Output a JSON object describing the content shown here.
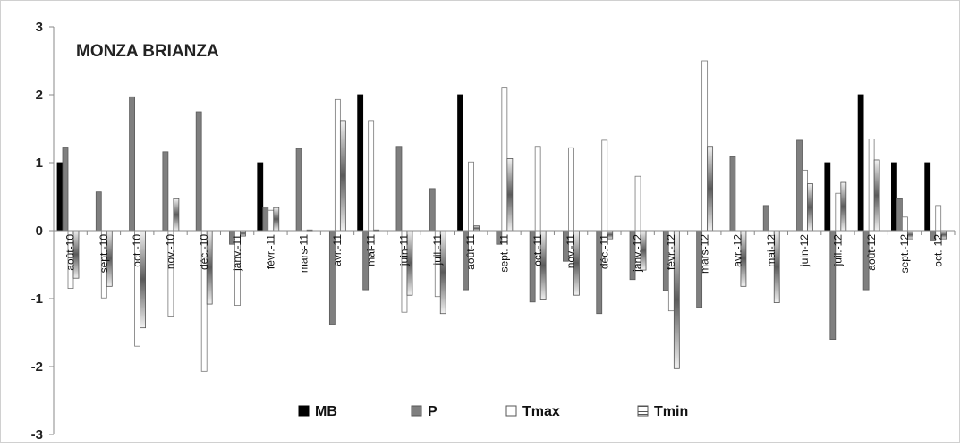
{
  "chart_data": {
    "type": "bar",
    "title": "MONZA BRIANZA",
    "xlabel": "",
    "ylabel": "",
    "ylim": [
      -3,
      3
    ],
    "yticks": [
      "3",
      "2",
      "1",
      "0",
      "-1",
      "-2",
      "-3"
    ],
    "grid": false,
    "legend_position": "bottom-center",
    "categories": [
      "août-10",
      "sept.-10",
      "oct.-10",
      "nov.-10",
      "déc.-10",
      "janv.-11",
      "févr.-11",
      "mars-11",
      "avr.-11",
      "mai-11",
      "juin-11",
      "juil.-11",
      "août-11",
      "sept.-11",
      "oct.-11",
      "nov.-11",
      "déc.-11",
      "janv.-12",
      "févr.-12",
      "mars-12",
      "avr.-12",
      "mai-12",
      "juin-12",
      "juil.-12",
      "août-12",
      "sept.-12",
      "oct.-12"
    ],
    "series": [
      {
        "name": "MB",
        "color": "#000000",
        "values": [
          1,
          0,
          0,
          0,
          0,
          0,
          1,
          0,
          0,
          2,
          0,
          0,
          2,
          0,
          0,
          0,
          0,
          0,
          0,
          0,
          0,
          0,
          0,
          1,
          2,
          1,
          1
        ]
      },
      {
        "name": "P",
        "color": "#7f7f7f",
        "values": [
          1.23,
          0.57,
          1.97,
          1.16,
          1.75,
          -0.2,
          0.35,
          1.21,
          -1.38,
          -0.87,
          1.24,
          0.62,
          -0.87,
          -0.2,
          -1.05,
          -0.45,
          -1.22,
          -0.72,
          -0.88,
          -1.13,
          1.09,
          0.37,
          1.33,
          -1.6,
          -0.87,
          0.47,
          -0.15
        ]
      },
      {
        "name": "Tmax",
        "color": "#ffffff",
        "values": [
          -0.85,
          -0.99,
          -1.7,
          -1.27,
          -2.07,
          -1.1,
          0.3,
          0,
          1.93,
          1.62,
          -1.2,
          -0.97,
          1.01,
          2.11,
          1.24,
          1.22,
          1.33,
          0.8,
          -1.18,
          2.5,
          0,
          -0.07,
          0.89,
          0.55,
          1.35,
          0.2,
          0.37
        ]
      },
      {
        "name": "Tmin",
        "color": "#d9d9d9",
        "values": [
          -0.7,
          -0.82,
          -1.43,
          0.47,
          -1.08,
          -0.08,
          0.34,
          0.01,
          1.62,
          0.01,
          -0.95,
          -1.22,
          0.07,
          1.06,
          -1.02,
          -0.95,
          -0.12,
          -0.58,
          -2.03,
          1.24,
          -0.82,
          -1.06,
          0.69,
          0.71,
          1.04,
          -0.12,
          -0.12
        ]
      }
    ]
  }
}
